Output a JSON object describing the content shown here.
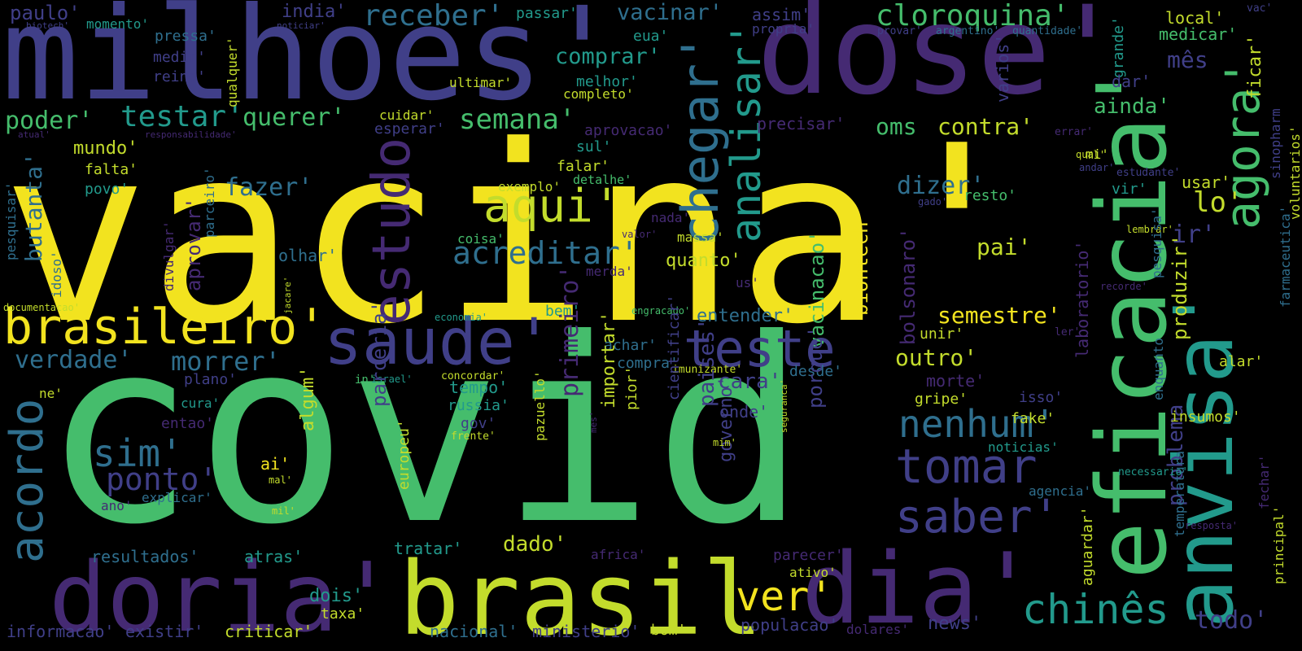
{
  "palette": {
    "background": "#000000",
    "yellow": "#f2e31f",
    "lime": "#c3dc2c",
    "green": "#45bd6c",
    "teal": "#229a8c",
    "blue": "#2f6f8e",
    "indigo": "#403f88",
    "purple": "#452a73",
    "dark": "#3a1756"
  },
  "words": [
    "vacina'",
    "covid",
    "milhoes'",
    "dose'",
    "brasil",
    "doria'",
    "dia'",
    "eficacia'",
    "anvisa'",
    "agora'",
    "saude'",
    "teste",
    "estudo",
    "chegar'",
    "analisar'",
    "brasileiro'",
    "aqui'",
    "acreditar'",
    "tomar",
    "saber'",
    "nenhum'",
    "chinês",
    "ver'",
    "sim'",
    "ponto'",
    "acordo",
    "cloroquina'",
    "receber'",
    "vacinar'",
    "comprar'",
    "testar'",
    "querer'",
    "poder'",
    "semana'",
    "oms",
    "contra'",
    "ainda'",
    "mês",
    "lo'",
    "ir'",
    "semestre'",
    "outro'",
    "verdade'",
    "morrer'",
    "butanta'",
    "fazer'",
    "dizer'",
    "paulo'",
    "india'",
    "passar'",
    "assim'",
    "local'",
    "medicar'",
    "pressa'",
    "medir'",
    "reino'",
    "momento'",
    "biotech'",
    "noticiar'",
    "eua'",
    "propria'",
    "provar'",
    "argentino'",
    "quantidade'",
    "vac'",
    "grande'",
    "ficar'",
    "melhor'",
    "completo'",
    "ultimar'",
    "dar'",
    "varios'",
    "cuidar'",
    "esperar'",
    "aprovacao'",
    "precisar'",
    "errar'",
    "atual'",
    "responsabilidade'",
    "mundo'",
    "falta'",
    "povo'",
    "sul'",
    "falar'",
    "detalhe'",
    "exemplo'",
    "resto'",
    "qual'",
    "andar'",
    "gado'",
    "estudante'",
    "vir'",
    "mi'",
    "usar'",
    "sinopharm",
    "voluntarios'",
    "qualquer'",
    "jacare'",
    "pesquisar'",
    "parceiro'",
    "aprovar'",
    "divulgar'",
    "nada'",
    "valor'",
    "coisa'",
    "massa'",
    "olhar'",
    "pai'",
    "lembrar'",
    "idoso'",
    "merda'",
    "us'",
    "vacinacao'",
    "biontech'",
    "bolsonaro'",
    "laboratorio'",
    "recorde'",
    "pesquisa'",
    "enquanto",
    "produzir'",
    "problema",
    "temperatura",
    "farmaceutica'",
    "documentacao'",
    "economia'",
    "engracado'",
    "bem'",
    "achar'",
    "compra'",
    "entender'",
    "desde'",
    "unir'",
    "ler'",
    "alar'",
    "cara'",
    "morte'",
    "isso'",
    "gripe'",
    "fake'",
    "insumos'",
    "noticias'",
    "necessario'",
    "fechar'",
    "principal'",
    "resposta'",
    "agencia'",
    "aguardar'",
    "plano'",
    "cura'",
    "entao'",
    "in'",
    "israel'",
    "concordar'",
    "imunizante'",
    "tempo'",
    "russia'",
    "gov'",
    "frente'",
    "onde'",
    "paises'",
    "porque'",
    "governo'",
    "primeiro'",
    "importar'",
    "pior'",
    "cientificar'",
    "mim'",
    "seguranca'",
    "mes'",
    "pazuello'",
    "parceria'",
    "europeu'",
    "algum'",
    "ai'",
    "mal'",
    "mil'",
    "explicar'",
    "ano'",
    "ne'",
    "dado'",
    "tratar'",
    "africa'",
    "parecer'",
    "ativo'",
    "resultados'",
    "atras'",
    "dois'",
    "taxa'",
    "informacao'",
    "existir'",
    "criticar'",
    "nacional'",
    "ministerio'",
    "bom'",
    "populacao'",
    "dolares'",
    "news'",
    "todo'",
    "quanto'"
  ]
}
